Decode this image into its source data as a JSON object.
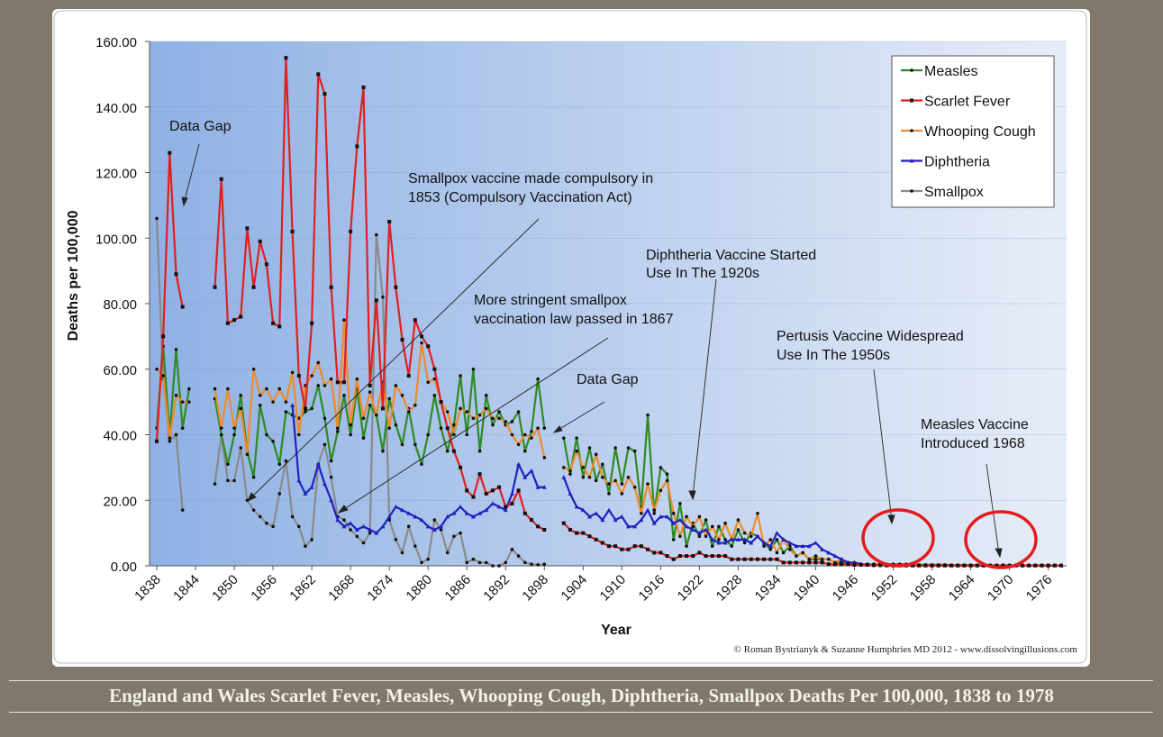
{
  "caption": "England and Wales Scarlet Fever, Measles, Whooping Cough, Diphtheria, Smallpox Deaths Per 100,000, 1838 to 1978",
  "copyright": "© Roman Bystrianyk & Suzanne Humphries MD 2012 - www.dissolvingillusions.com",
  "annotations": {
    "data_gap_1": "Data Gap",
    "data_gap_2": "Data Gap",
    "smallpox_1853": [
      "Smallpox vaccine made compulsory in",
      "1853 (Compulsory Vaccination Act)"
    ],
    "smallpox_1867": [
      "More stringent smallpox",
      "vaccination law passed in 1867"
    ],
    "diphtheria": [
      "Diphtheria Vaccine Started",
      "Use In The 1920s"
    ],
    "pertussis": [
      "Pertusis Vaccine Widespread",
      "Use In The 1950s"
    ],
    "measles": [
      "Measles Vaccine",
      "Introduced 1968"
    ]
  },
  "chart_data": {
    "type": "line",
    "title": "",
    "xlabel": "Year",
    "ylabel": "Deaths per 100,000",
    "xlim": [
      1838,
      1978
    ],
    "ylim": [
      0,
      160
    ],
    "x_ticks": [
      "1838",
      "1844",
      "1850",
      "1856",
      "1862",
      "1868",
      "1874",
      "1880",
      "1886",
      "1892",
      "1898",
      "1904",
      "1910",
      "1916",
      "1922",
      "1928",
      "1934",
      "1940",
      "1946",
      "1952",
      "1958",
      "1964",
      "1970",
      "1976"
    ],
    "y_ticks": [
      "0.00",
      "20.00",
      "40.00",
      "60.00",
      "80.00",
      "100.00",
      "120.00",
      "140.00",
      "160.00"
    ],
    "legend_position": "top-right",
    "series": [
      {
        "name": "Measles",
        "color": "#2e8b22",
        "marker": "circle",
        "x": [
          1838,
          1839,
          1840,
          1841,
          1842,
          1843,
          1847,
          1848,
          1849,
          1850,
          1851,
          1852,
          1853,
          1854,
          1855,
          1856,
          1857,
          1858,
          1859,
          1860,
          1861,
          1862,
          1863,
          1864,
          1865,
          1866,
          1867,
          1868,
          1869,
          1870,
          1871,
          1872,
          1873,
          1874,
          1875,
          1876,
          1877,
          1878,
          1879,
          1880,
          1881,
          1882,
          1883,
          1884,
          1885,
          1886,
          1887,
          1888,
          1889,
          1890,
          1891,
          1892,
          1893,
          1894,
          1895,
          1896,
          1897,
          1898,
          1901,
          1902,
          1903,
          1904,
          1905,
          1906,
          1907,
          1908,
          1909,
          1910,
          1911,
          1912,
          1913,
          1914,
          1915,
          1916,
          1917,
          1918,
          1919,
          1920,
          1921,
          1922,
          1923,
          1924,
          1925,
          1926,
          1927,
          1928,
          1929,
          1930,
          1931,
          1932,
          1933,
          1934,
          1935,
          1936,
          1937,
          1938,
          1939,
          1940,
          1941,
          1942,
          1943,
          1944,
          1945,
          1946,
          1947,
          1948,
          1949,
          1950,
          1951,
          1952,
          1953,
          1954,
          1955,
          1956,
          1957,
          1958,
          1959,
          1960,
          1961,
          1962,
          1963,
          1964,
          1965,
          1966,
          1967,
          1968,
          1969,
          1970,
          1971,
          1972,
          1973,
          1974,
          1975,
          1976,
          1977,
          1978
        ],
        "y": [
          42,
          67,
          40,
          66,
          42,
          54,
          51,
          40,
          31,
          40,
          52,
          35,
          27,
          49,
          40,
          38,
          31,
          47,
          46,
          45,
          47,
          48,
          55,
          45,
          32,
          41,
          52,
          40,
          54,
          39,
          49,
          46,
          35,
          51,
          43,
          37,
          48,
          37,
          31,
          40,
          52,
          42,
          35,
          43,
          58,
          40,
          60,
          35,
          52,
          43,
          47,
          43,
          44,
          47,
          35,
          41,
          57,
          42,
          39,
          28,
          39,
          27,
          36,
          26,
          31,
          22,
          36,
          25,
          36,
          35,
          18,
          46,
          16,
          30,
          28,
          8,
          19,
          6,
          13,
          9,
          14,
          6,
          12,
          8,
          6,
          11,
          7,
          10,
          9,
          7,
          5,
          8,
          4,
          6,
          3,
          4,
          2,
          2,
          2,
          2,
          1,
          1,
          1,
          1,
          0.5,
          0.5,
          0.5,
          0.5,
          0.5,
          0.5,
          0.5,
          0.5,
          0.5,
          0.3,
          0.3,
          0.3,
          0.3,
          0.3,
          0.2,
          0.2,
          0.2,
          0.2,
          0.2,
          0.1,
          0.1,
          0.1,
          0.1,
          0.1,
          0.1,
          0.1,
          0.1,
          0.1,
          0.1,
          0.1,
          0.1,
          0.1
        ]
      },
      {
        "name": "Scarlet Fever",
        "color": "#e02020",
        "marker": "square",
        "x": [
          1838,
          1839,
          1840,
          1841,
          1842,
          1843,
          1847,
          1848,
          1849,
          1850,
          1851,
          1852,
          1853,
          1854,
          1855,
          1856,
          1857,
          1858,
          1859,
          1860,
          1861,
          1862,
          1863,
          1864,
          1865,
          1866,
          1867,
          1868,
          1869,
          1870,
          1871,
          1872,
          1873,
          1874,
          1875,
          1876,
          1877,
          1878,
          1879,
          1880,
          1881,
          1882,
          1883,
          1884,
          1885,
          1886,
          1887,
          1888,
          1889,
          1890,
          1891,
          1892,
          1893,
          1894,
          1895,
          1896,
          1897,
          1898,
          1901,
          1902,
          1903,
          1904,
          1905,
          1906,
          1907,
          1908,
          1909,
          1910,
          1911,
          1912,
          1913,
          1914,
          1915,
          1916,
          1917,
          1918,
          1919,
          1920,
          1921,
          1922,
          1923,
          1924,
          1925,
          1926,
          1927,
          1928,
          1929,
          1930,
          1931,
          1932,
          1933,
          1934,
          1935,
          1936,
          1937,
          1938,
          1939,
          1940,
          1941,
          1942,
          1943,
          1944,
          1945,
          1946,
          1947,
          1948,
          1949,
          1950,
          1951,
          1952,
          1953,
          1954,
          1955,
          1956,
          1957,
          1958,
          1959,
          1960,
          1961,
          1962,
          1963,
          1964,
          1965,
          1966,
          1967,
          1968,
          1969,
          1970,
          1971,
          1972,
          1973,
          1974,
          1975,
          1976,
          1977,
          1978
        ],
        "y": [
          38,
          70,
          126,
          89,
          79,
          null,
          85,
          118,
          74,
          75,
          76,
          103,
          85,
          99,
          92,
          74,
          73,
          155,
          102,
          58,
          48,
          74,
          150,
          144,
          85,
          56,
          56,
          102,
          128,
          146,
          55,
          81,
          48,
          105,
          85,
          69,
          58,
          75,
          70,
          67,
          60,
          50,
          42,
          35,
          30,
          23,
          21,
          28,
          22,
          23,
          24,
          18,
          19,
          23,
          16,
          14,
          12,
          11,
          13,
          11,
          10,
          10,
          9,
          8,
          7,
          6,
          6,
          5,
          5,
          6,
          6,
          5,
          4,
          4,
          3,
          2,
          3,
          3,
          3,
          4,
          3,
          3,
          3,
          3,
          2,
          2,
          2,
          2,
          2,
          2,
          2,
          2,
          1,
          1,
          1,
          1,
          1,
          1,
          1,
          0.5,
          0.5,
          0.5,
          0.5,
          0.3,
          0.3,
          0.3,
          0.2,
          0.2,
          0.2,
          0.1,
          0.1,
          0.1,
          0.1,
          0.1,
          0.1,
          0.1,
          0.1,
          0.1,
          0.1,
          0.1,
          0.1,
          0.1,
          0.1,
          0.1,
          0.1,
          0.1,
          0.1,
          0.1,
          0.1,
          0.1,
          0.1,
          0.1,
          0.1,
          0.1,
          0.1,
          0.1
        ]
      },
      {
        "name": "Whooping Cough",
        "color": "#f08a2a",
        "marker": "circle",
        "x": [
          1838,
          1839,
          1840,
          1841,
          1842,
          1843,
          1847,
          1848,
          1849,
          1850,
          1851,
          1852,
          1853,
          1854,
          1855,
          1856,
          1857,
          1858,
          1859,
          1860,
          1861,
          1862,
          1863,
          1864,
          1865,
          1866,
          1867,
          1868,
          1869,
          1870,
          1871,
          1872,
          1873,
          1874,
          1875,
          1876,
          1877,
          1878,
          1879,
          1880,
          1881,
          1882,
          1883,
          1884,
          1885,
          1886,
          1887,
          1888,
          1889,
          1890,
          1891,
          1892,
          1893,
          1894,
          1895,
          1896,
          1897,
          1898,
          1901,
          1902,
          1903,
          1904,
          1905,
          1906,
          1907,
          1908,
          1909,
          1910,
          1911,
          1912,
          1913,
          1914,
          1915,
          1916,
          1917,
          1918,
          1919,
          1920,
          1921,
          1922,
          1923,
          1924,
          1925,
          1926,
          1927,
          1928,
          1929,
          1930,
          1931,
          1932,
          1933,
          1934,
          1935,
          1936,
          1937,
          1938,
          1939,
          1940,
          1941,
          1942,
          1943,
          1944,
          1945,
          1946,
          1947,
          1948,
          1949,
          1950,
          1951,
          1952,
          1953,
          1954,
          1955,
          1956,
          1957,
          1958,
          1959,
          1960,
          1961,
          1962,
          1963,
          1964,
          1965,
          1966,
          1967,
          1968,
          1969,
          1970,
          1971,
          1972,
          1973,
          1974,
          1975,
          1976,
          1977,
          1978
        ],
        "y": [
          60,
          58,
          39,
          52,
          50,
          50,
          54,
          42,
          54,
          42,
          48,
          34,
          60,
          52,
          54,
          50,
          54,
          50,
          59,
          40,
          55,
          58,
          62,
          55,
          57,
          42,
          75,
          43,
          57,
          45,
          53,
          46,
          56,
          42,
          55,
          52,
          47,
          49,
          68,
          56,
          57,
          50,
          47,
          40,
          48,
          47,
          45,
          46,
          48,
          45,
          45,
          44,
          40,
          37,
          40,
          39,
          42,
          33,
          30,
          29,
          35,
          30,
          27,
          34,
          27,
          25,
          26,
          22,
          27,
          24,
          16,
          25,
          17,
          23,
          26,
          16,
          9,
          15,
          12,
          15,
          9,
          12,
          8,
          13,
          8,
          14,
          10,
          9,
          16,
          6,
          8,
          4,
          8,
          5,
          3,
          4,
          2,
          3,
          2,
          2,
          1,
          2,
          1,
          1,
          0.5,
          0.5,
          0.5,
          0.5,
          0.5,
          0.3,
          0.2,
          0.2,
          0.2,
          0.2,
          0.1,
          0.1,
          0.1,
          0.1,
          0.1,
          0.1,
          0.1,
          0.1,
          0.1,
          0.1,
          0.1,
          0.1,
          0.1,
          0.1,
          0.1,
          0.1,
          0.1,
          0.1,
          0.1,
          0.1,
          0.1,
          0.1
        ]
      },
      {
        "name": "Diphtheria",
        "color": "#2020c0",
        "marker": "triangle",
        "x": [
          1859,
          1860,
          1861,
          1862,
          1863,
          1864,
          1865,
          1866,
          1867,
          1868,
          1869,
          1870,
          1871,
          1872,
          1873,
          1874,
          1875,
          1876,
          1877,
          1878,
          1879,
          1880,
          1881,
          1882,
          1883,
          1884,
          1885,
          1886,
          1887,
          1888,
          1889,
          1890,
          1891,
          1892,
          1893,
          1894,
          1895,
          1896,
          1897,
          1898,
          1901,
          1902,
          1903,
          1904,
          1905,
          1906,
          1907,
          1908,
          1909,
          1910,
          1911,
          1912,
          1913,
          1914,
          1915,
          1916,
          1917,
          1918,
          1919,
          1920,
          1921,
          1922,
          1923,
          1924,
          1925,
          1926,
          1927,
          1928,
          1929,
          1930,
          1931,
          1932,
          1933,
          1934,
          1935,
          1936,
          1937,
          1938,
          1939,
          1940,
          1941,
          1942,
          1943,
          1944,
          1945,
          1946,
          1947,
          1948,
          1949,
          1950,
          1951,
          1952,
          1953,
          1954,
          1955,
          1956,
          1957,
          1958,
          1959,
          1960,
          1961,
          1962,
          1963,
          1964,
          1965,
          1966,
          1967,
          1968,
          1969,
          1970,
          1971,
          1972,
          1973,
          1974,
          1975,
          1976,
          1977,
          1978
        ],
        "y": [
          49,
          26,
          22,
          24,
          31,
          25,
          20,
          14,
          12,
          13,
          11,
          12,
          11,
          10,
          12,
          15,
          18,
          17,
          16,
          15,
          14,
          12,
          11,
          12,
          15,
          16,
          18,
          16,
          15,
          16,
          17,
          19,
          18,
          17,
          22,
          31,
          27,
          29,
          24,
          24,
          27,
          22,
          18,
          17,
          15,
          16,
          14,
          17,
          14,
          15,
          12,
          12,
          14,
          17,
          13,
          15,
          15,
          13,
          14,
          12,
          11,
          10,
          11,
          8,
          7,
          7,
          8,
          8,
          8,
          7,
          9,
          7,
          6,
          10,
          8,
          7,
          6,
          6,
          6,
          7,
          5,
          4,
          3,
          2,
          1,
          1,
          0.5,
          0.3,
          0.2,
          0.2,
          0.1,
          0.1,
          0.1,
          0.1,
          0.1,
          0.1,
          0.1,
          0.1,
          0.1,
          0.1,
          0.1,
          0.1,
          0.1,
          0.1,
          0.1,
          0.1,
          0.1,
          0.1,
          0.1,
          0.1,
          0.1,
          0.1,
          0.1,
          0.1,
          0.1,
          0.1,
          0.1,
          0.1
        ]
      },
      {
        "name": "Smallpox",
        "color": "#8a8a8a",
        "marker": "circle",
        "x": [
          1838,
          1839,
          1840,
          1841,
          1842,
          1843,
          1847,
          1848,
          1849,
          1850,
          1851,
          1852,
          1853,
          1854,
          1855,
          1856,
          1857,
          1858,
          1859,
          1860,
          1861,
          1862,
          1863,
          1864,
          1865,
          1866,
          1867,
          1868,
          1869,
          1870,
          1871,
          1872,
          1873,
          1874,
          1875,
          1876,
          1877,
          1878,
          1879,
          1880,
          1881,
          1882,
          1883,
          1884,
          1885,
          1886,
          1887,
          1888,
          1889,
          1890,
          1891,
          1892,
          1893,
          1894,
          1895,
          1896,
          1897,
          1898
        ],
        "y": [
          106,
          57,
          38,
          40,
          17,
          null,
          25,
          40,
          26,
          26,
          36,
          20,
          17,
          15,
          13,
          12,
          22,
          32,
          15,
          12,
          6,
          8,
          31,
          37,
          27,
          15,
          14,
          11,
          9,
          7,
          10,
          101,
          82,
          14,
          8,
          4,
          12,
          6,
          1,
          2,
          14,
          11,
          4,
          9,
          10,
          1,
          2,
          1,
          1,
          0,
          0,
          1,
          5,
          3,
          1,
          0.5,
          0.3,
          0.5
        ]
      }
    ]
  }
}
